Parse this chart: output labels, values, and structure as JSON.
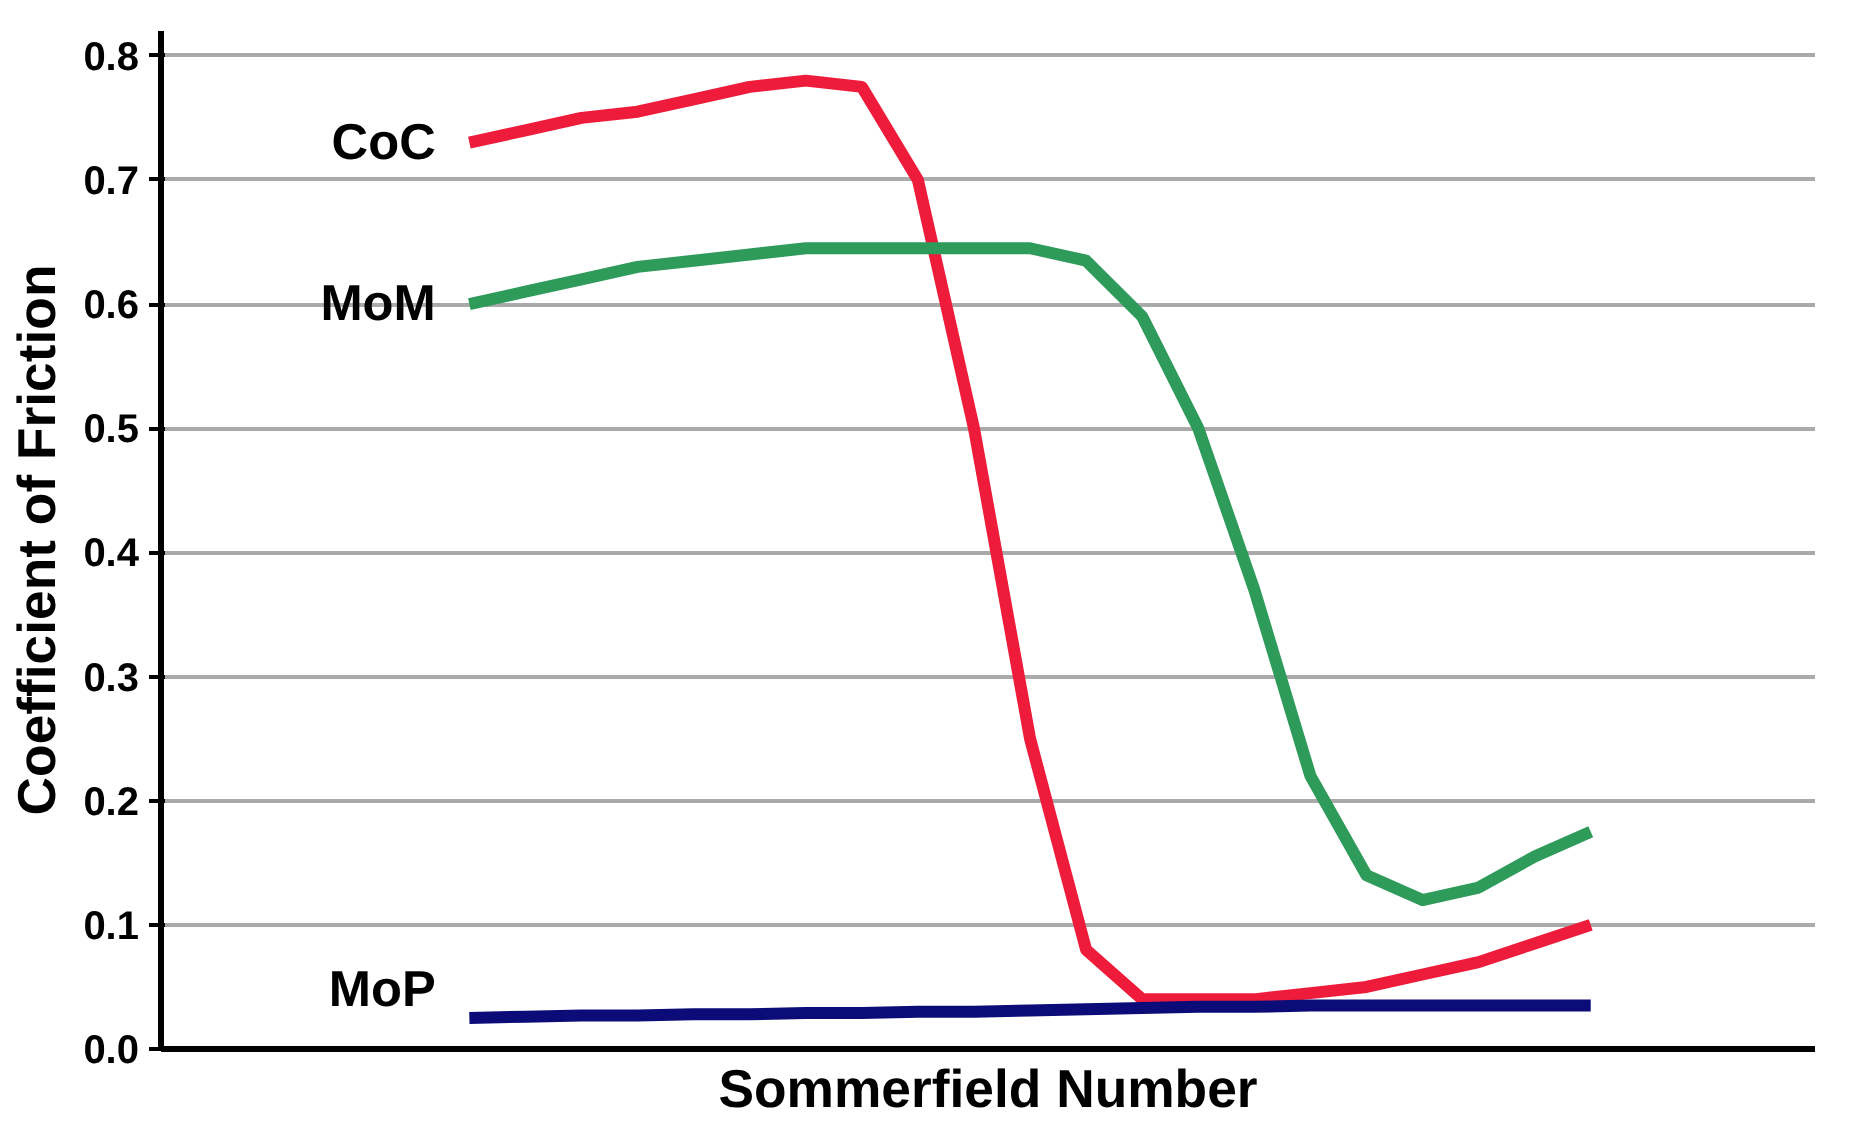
{
  "chart_data": {
    "type": "line",
    "xlabel": "Sommerfield Number",
    "ylabel": "Coefficient of Friction",
    "categories": [
      null,
      null,
      null,
      null,
      null,
      null,
      null,
      null,
      null,
      null,
      null,
      null,
      null,
      null,
      null,
      null,
      null,
      null,
      null,
      null,
      null
    ],
    "series": [
      {
        "name": "CoC",
        "color": "#ee1c3a",
        "values": [
          0.73,
          0.74,
          0.75,
          0.755,
          0.765,
          0.775,
          0.78,
          0.775,
          0.7,
          0.5,
          0.25,
          0.08,
          0.04,
          0.04,
          0.04,
          0.045,
          0.05,
          0.06,
          0.07,
          0.085,
          0.1
        ]
      },
      {
        "name": "MoM",
        "color": "#2e9b5a",
        "values": [
          0.6,
          0.61,
          0.62,
          0.63,
          0.635,
          0.64,
          0.645,
          0.645,
          0.645,
          0.645,
          0.645,
          0.635,
          0.59,
          0.5,
          0.37,
          0.22,
          0.14,
          0.12,
          0.13,
          0.155,
          0.175
        ]
      },
      {
        "name": "MoP",
        "color": "#0c0c78",
        "values": [
          0.025,
          0.026,
          0.027,
          0.027,
          0.028,
          0.028,
          0.029,
          0.029,
          0.03,
          0.03,
          0.031,
          0.032,
          0.033,
          0.034,
          0.034,
          0.035,
          0.035,
          0.035,
          0.035,
          0.035,
          0.035
        ]
      }
    ],
    "ylim": [
      0,
      0.82
    ],
    "yticks": [
      {
        "value": 0,
        "label": "0.0"
      },
      0.1,
      0.2,
      0.3,
      0.4,
      0.5,
      0.6,
      0.7,
      0.8
    ],
    "grid": "y",
    "marker": "none",
    "line_style": "solid",
    "tick_labels": "y"
  }
}
